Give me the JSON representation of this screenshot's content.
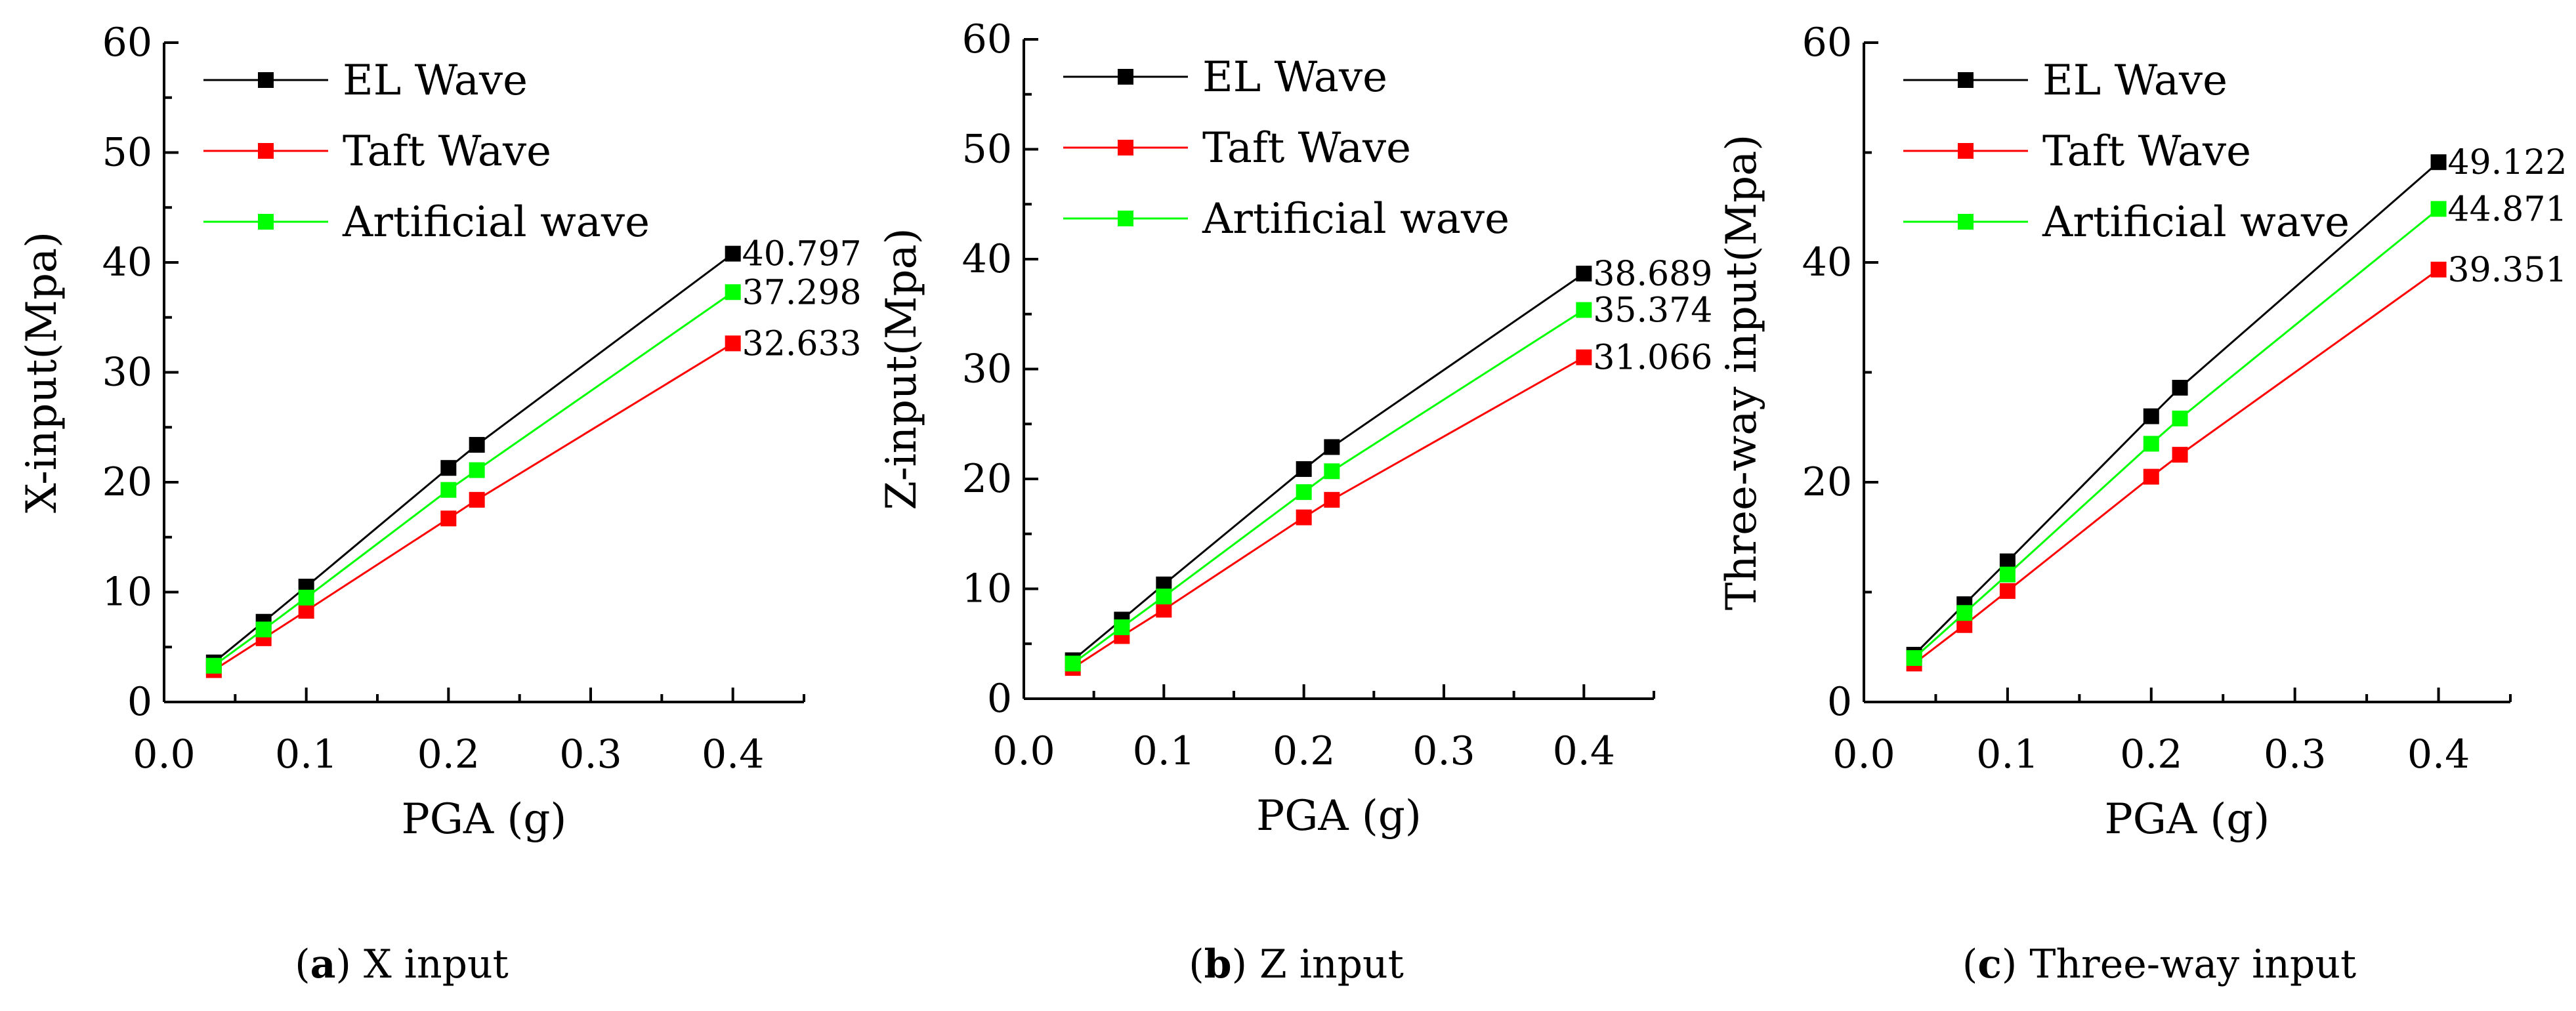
{
  "chart_data": [
    {
      "type": "line",
      "caption_letter": "a",
      "caption_text": " X input",
      "xlabel": "PGA (g)",
      "ylabel": "X-input(Mpa)",
      "xlim": [
        0.0,
        0.45
      ],
      "ylim": [
        0,
        60
      ],
      "xticks": [
        "0.0",
        "0.1",
        "0.2",
        "0.3",
        "0.4"
      ],
      "yticks": [
        "0",
        "10",
        "20",
        "30",
        "40",
        "50",
        "60"
      ],
      "x": [
        0.035,
        0.07,
        0.1,
        0.2,
        0.22,
        0.4
      ],
      "legend_position": "top-left",
      "series": [
        {
          "name": "EL Wave",
          "color": "#000000",
          "values": [
            3.6,
            7.3,
            10.5,
            21.3,
            23.4,
            40.797
          ],
          "end_label": "40.797"
        },
        {
          "name": "Taft Wave",
          "color": "#ff0000",
          "values": [
            2.9,
            5.8,
            8.3,
            16.7,
            18.4,
            32.633
          ],
          "end_label": "32.633"
        },
        {
          "name": "Artificial wave",
          "color": "#00ff00",
          "values": [
            3.3,
            6.6,
            9.5,
            19.3,
            21.1,
            37.298
          ],
          "end_label": "37.298"
        }
      ]
    },
    {
      "type": "line",
      "caption_letter": "b",
      "caption_text": " Z input",
      "xlabel": "PGA (g)",
      "ylabel": "Z-input(Mpa)",
      "xlim": [
        0.0,
        0.45
      ],
      "ylim": [
        0,
        60
      ],
      "xticks": [
        "0.0",
        "0.1",
        "0.2",
        "0.3",
        "0.4"
      ],
      "yticks": [
        "0",
        "10",
        "20",
        "30",
        "40",
        "50",
        "60"
      ],
      "x": [
        0.035,
        0.07,
        0.1,
        0.2,
        0.22,
        0.4
      ],
      "legend_position": "top-left",
      "series": [
        {
          "name": "EL Wave",
          "color": "#000000",
          "values": [
            3.5,
            7.2,
            10.4,
            20.9,
            22.9,
            38.689
          ],
          "end_label": "38.689"
        },
        {
          "name": "Taft Wave",
          "color": "#ff0000",
          "values": [
            2.8,
            5.7,
            8.1,
            16.5,
            18.1,
            31.066
          ],
          "end_label": "31.066"
        },
        {
          "name": "Artificial wave",
          "color": "#00ff00",
          "values": [
            3.2,
            6.5,
            9.3,
            18.8,
            20.7,
            35.374
          ],
          "end_label": "35.374"
        }
      ]
    },
    {
      "type": "line",
      "caption_letter": "c",
      "caption_text": " Three-way input",
      "xlabel": "PGA (g)",
      "ylabel": "Three-way input(Mpa)",
      "xlim": [
        0.0,
        0.45
      ],
      "ylim": [
        0,
        60
      ],
      "xticks": [
        "0.0",
        "0.1",
        "0.2",
        "0.3",
        "0.4"
      ],
      "yticks": [
        "0",
        "20",
        "40",
        "60"
      ],
      "x": [
        0.035,
        0.07,
        0.1,
        0.2,
        0.22,
        0.4
      ],
      "legend_position": "top-left",
      "series": [
        {
          "name": "EL Wave",
          "color": "#000000",
          "values": [
            4.3,
            8.9,
            12.8,
            26.0,
            28.6,
            49.122
          ],
          "end_label": "49.122"
        },
        {
          "name": "Taft Wave",
          "color": "#ff0000",
          "values": [
            3.5,
            7.0,
            10.1,
            20.5,
            22.5,
            39.351
          ],
          "end_label": "39.351"
        },
        {
          "name": "Artificial wave",
          "color": "#00ff00",
          "values": [
            4.0,
            8.1,
            11.6,
            23.5,
            25.8,
            44.871
          ],
          "end_label": "44.871"
        }
      ]
    }
  ]
}
